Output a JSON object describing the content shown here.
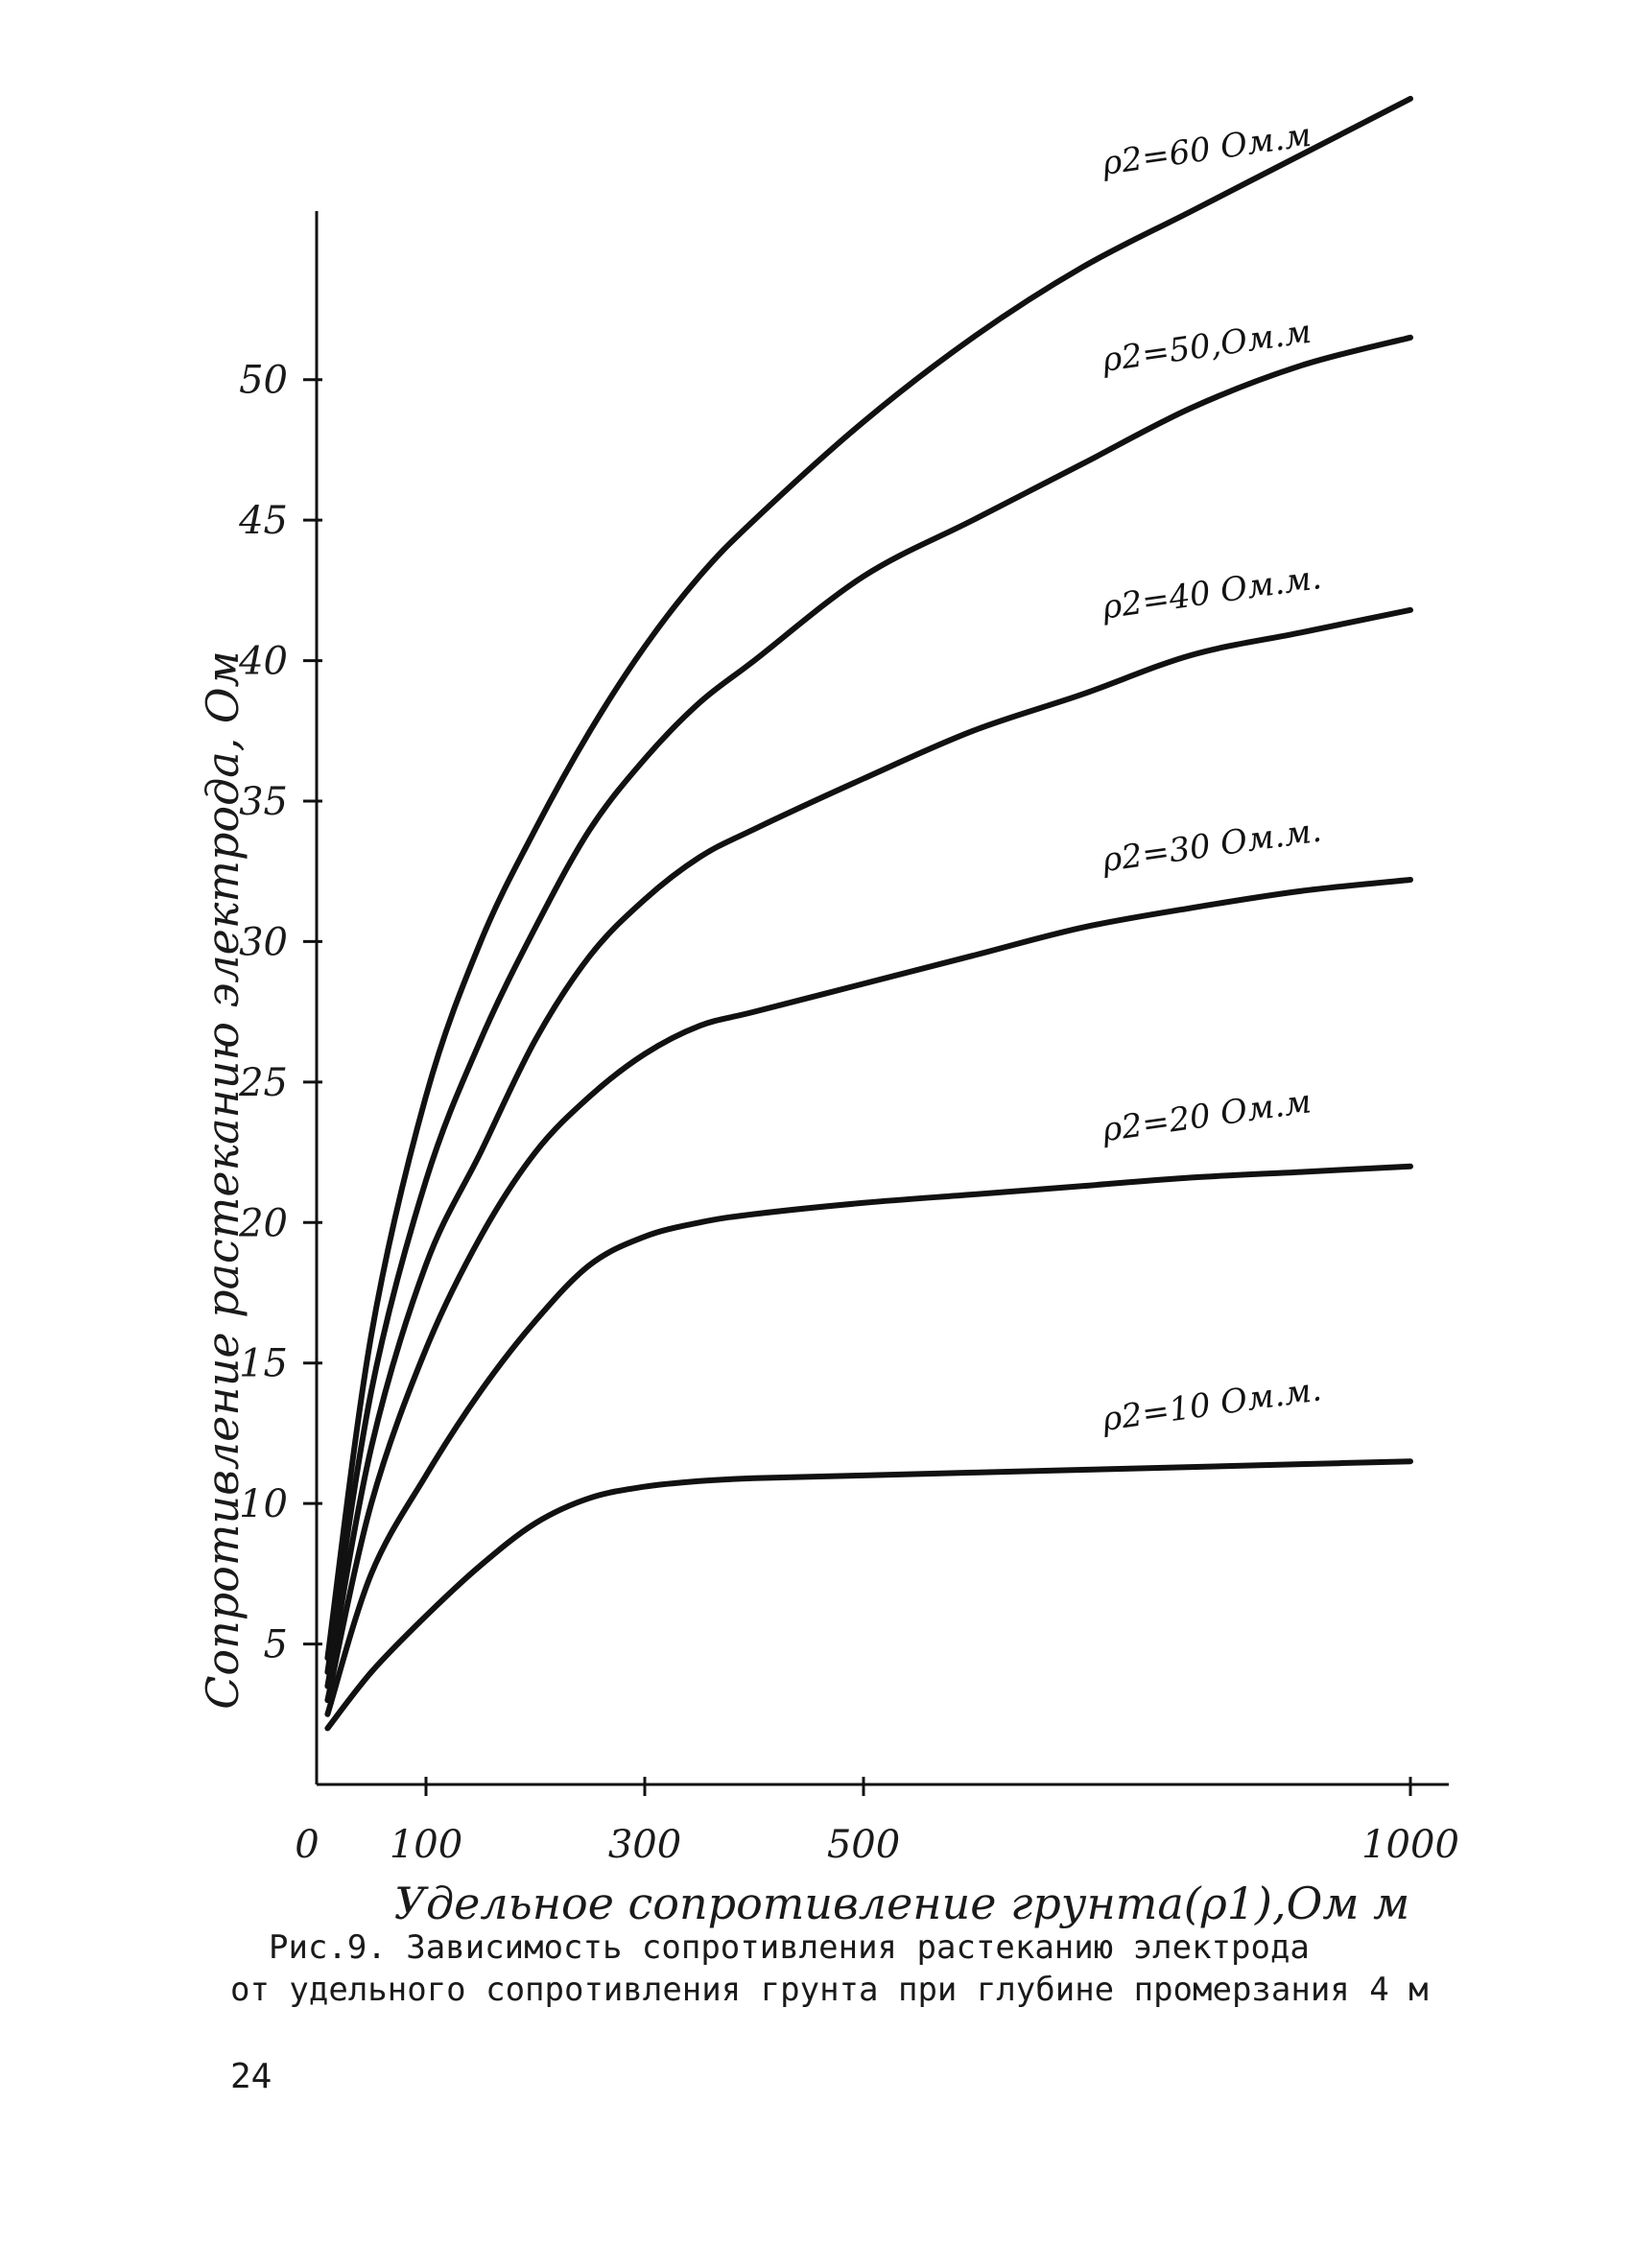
{
  "chart_data": {
    "type": "line",
    "xlabel": "Удельное сопротивление грунта(ρ1),Ом м",
    "ylabel": "Сопротивление растеканию электрода, Ом",
    "x_ticks": [
      "0",
      "100",
      "300",
      "500",
      "1000"
    ],
    "y_ticks": [
      "5",
      "10",
      "15",
      "20",
      "25",
      "30",
      "35",
      "40",
      "45",
      "50"
    ],
    "xlim": [
      0,
      1000
    ],
    "ylim": [
      0,
      56
    ],
    "grid": false,
    "series": [
      {
        "name": "ρ2=60 Ом.м",
        "x": [
          10,
          50,
          100,
          150,
          200,
          250,
          300,
          350,
          400,
          500,
          600,
          700,
          800,
          900,
          1000
        ],
        "y": [
          4.5,
          16,
          24.5,
          30,
          34,
          37.5,
          40.5,
          43,
          45,
          48.5,
          51.5,
          54,
          56,
          58,
          60
        ]
      },
      {
        "name": "ρ2=50,Ом.м",
        "x": [
          10,
          50,
          100,
          150,
          200,
          250,
          300,
          350,
          400,
          500,
          600,
          700,
          800,
          900,
          1000
        ],
        "y": [
          4,
          14,
          21.5,
          26.5,
          30.5,
          34,
          36.5,
          38.5,
          40,
          43,
          45,
          47,
          49,
          50.5,
          51.5
        ]
      },
      {
        "name": "ρ2=40 Ом.м.",
        "x": [
          10,
          50,
          100,
          150,
          200,
          250,
          300,
          350,
          400,
          500,
          600,
          700,
          800,
          900,
          1000
        ],
        "y": [
          3.5,
          12,
          18.5,
          22.5,
          26.5,
          29.5,
          31.5,
          33,
          34,
          35.8,
          37.5,
          38.8,
          40.2,
          41,
          41.8
        ]
      },
      {
        "name": "ρ2=30 Ом.м.",
        "x": [
          10,
          50,
          100,
          150,
          200,
          250,
          300,
          350,
          400,
          500,
          600,
          700,
          800,
          900,
          1000
        ],
        "y": [
          3,
          10,
          15.5,
          19.5,
          22.5,
          24.5,
          26,
          27,
          27.5,
          28.5,
          29.5,
          30.5,
          31.2,
          31.8,
          32.2
        ]
      },
      {
        "name": "ρ2=20 Ом.м",
        "x": [
          10,
          50,
          100,
          150,
          200,
          250,
          300,
          350,
          400,
          500,
          600,
          700,
          800,
          900,
          1000
        ],
        "y": [
          2.5,
          7.5,
          11,
          14,
          16.5,
          18.5,
          19.5,
          20,
          20.3,
          20.7,
          21,
          21.3,
          21.6,
          21.8,
          22
        ]
      },
      {
        "name": "ρ2=10 Ом.м.",
        "x": [
          10,
          50,
          100,
          150,
          200,
          250,
          300,
          350,
          400,
          500,
          600,
          700,
          800,
          900,
          1000
        ],
        "y": [
          2,
          4,
          6,
          7.8,
          9.3,
          10.2,
          10.6,
          10.8,
          10.9,
          11,
          11.1,
          11.2,
          11.3,
          11.4,
          11.5
        ]
      }
    ]
  },
  "caption": {
    "line1": "Рис.9.  Зависимость сопротивления растеканию электрода",
    "line2": "от удельного сопротивления грунта при глубине промерзания 4 м"
  },
  "page_number": "24"
}
